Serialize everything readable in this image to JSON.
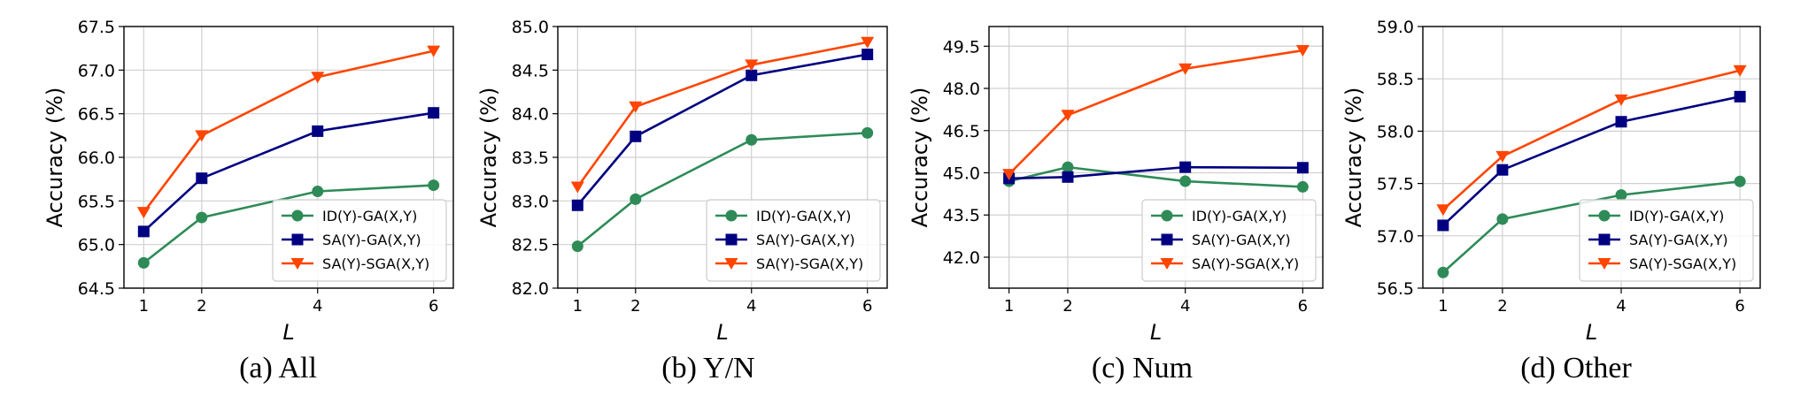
{
  "chart_data": [
    {
      "type": "line",
      "caption": "(a) All",
      "xlabel": "L",
      "ylabel": "Accuracy (%)",
      "x": [
        1,
        2,
        4,
        6
      ],
      "xticks": [
        "1",
        "2",
        "4",
        "6"
      ],
      "ylim": [
        64.5,
        67.5
      ],
      "yticks": [
        "64.5",
        "65.0",
        "65.5",
        "66.0",
        "66.5",
        "67.0",
        "67.5"
      ],
      "grid": true,
      "legend": "bottom-right",
      "series": [
        {
          "name": "ID(Y)-GA(X,Y)",
          "values": [
            64.79,
            65.31,
            65.61,
            65.68
          ],
          "color": "#2e8b57",
          "marker": "circle"
        },
        {
          "name": "SA(Y)-GA(X,Y)",
          "values": [
            65.15,
            65.76,
            66.3,
            66.51
          ],
          "color": "#000080",
          "marker": "square"
        },
        {
          "name": "SA(Y)-SGA(X,Y)",
          "values": [
            65.37,
            66.25,
            66.92,
            67.22
          ],
          "color": "#ff4500",
          "marker": "triangle-down"
        }
      ]
    },
    {
      "type": "line",
      "caption": "(b) Y/N",
      "xlabel": "L",
      "ylabel": "Accuracy (%)",
      "x": [
        1,
        2,
        4,
        6
      ],
      "xticks": [
        "1",
        "2",
        "4",
        "6"
      ],
      "ylim": [
        82.0,
        85.0
      ],
      "yticks": [
        "82.0",
        "82.5",
        "83.0",
        "83.5",
        "84.0",
        "84.5",
        "85.0"
      ],
      "grid": true,
      "legend": "bottom-right",
      "series": [
        {
          "name": "ID(Y)-GA(X,Y)",
          "values": [
            82.48,
            83.02,
            83.7,
            83.78
          ],
          "color": "#2e8b57",
          "marker": "circle"
        },
        {
          "name": "SA(Y)-GA(X,Y)",
          "values": [
            82.95,
            83.74,
            84.44,
            84.68
          ],
          "color": "#000080",
          "marker": "square"
        },
        {
          "name": "SA(Y)-SGA(X,Y)",
          "values": [
            83.16,
            84.08,
            84.56,
            84.82
          ],
          "color": "#ff4500",
          "marker": "triangle-down"
        }
      ]
    },
    {
      "type": "line",
      "caption": "(c) Num",
      "xlabel": "L",
      "ylabel": "Accuracy (%)",
      "x": [
        1,
        2,
        4,
        6
      ],
      "xticks": [
        "1",
        "2",
        "4",
        "6"
      ],
      "ylim": [
        40.9,
        50.2
      ],
      "yticks": [
        "42.0",
        "43.5",
        "45.0",
        "46.5",
        "48.0",
        "49.5"
      ],
      "grid": true,
      "legend": "bottom-right",
      "series": [
        {
          "name": "ID(Y)-GA(X,Y)",
          "values": [
            44.7,
            45.2,
            44.7,
            44.5
          ],
          "color": "#2e8b57",
          "marker": "circle"
        },
        {
          "name": "SA(Y)-GA(X,Y)",
          "values": [
            44.8,
            44.85,
            45.2,
            45.18
          ],
          "color": "#000080",
          "marker": "square"
        },
        {
          "name": "SA(Y)-SGA(X,Y)",
          "values": [
            44.95,
            47.05,
            48.7,
            49.35
          ],
          "color": "#ff4500",
          "marker": "triangle-down"
        }
      ]
    },
    {
      "type": "line",
      "caption": "(d) Other",
      "xlabel": "L",
      "ylabel": "Accuracy (%)",
      "x": [
        1,
        2,
        4,
        6
      ],
      "xticks": [
        "1",
        "2",
        "4",
        "6"
      ],
      "ylim": [
        56.5,
        59.0
      ],
      "yticks": [
        "56.5",
        "57.0",
        "57.5",
        "58.0",
        "58.5",
        "59.0"
      ],
      "grid": true,
      "legend": "bottom-right",
      "series": [
        {
          "name": "ID(Y)-GA(X,Y)",
          "values": [
            56.65,
            57.16,
            57.39,
            57.52
          ],
          "color": "#2e8b57",
          "marker": "circle"
        },
        {
          "name": "SA(Y)-GA(X,Y)",
          "values": [
            57.1,
            57.63,
            58.09,
            58.33
          ],
          "color": "#000080",
          "marker": "square"
        },
        {
          "name": "SA(Y)-SGA(X,Y)",
          "values": [
            57.25,
            57.76,
            58.3,
            58.58
          ],
          "color": "#ff4500",
          "marker": "triangle-down"
        }
      ]
    }
  ]
}
